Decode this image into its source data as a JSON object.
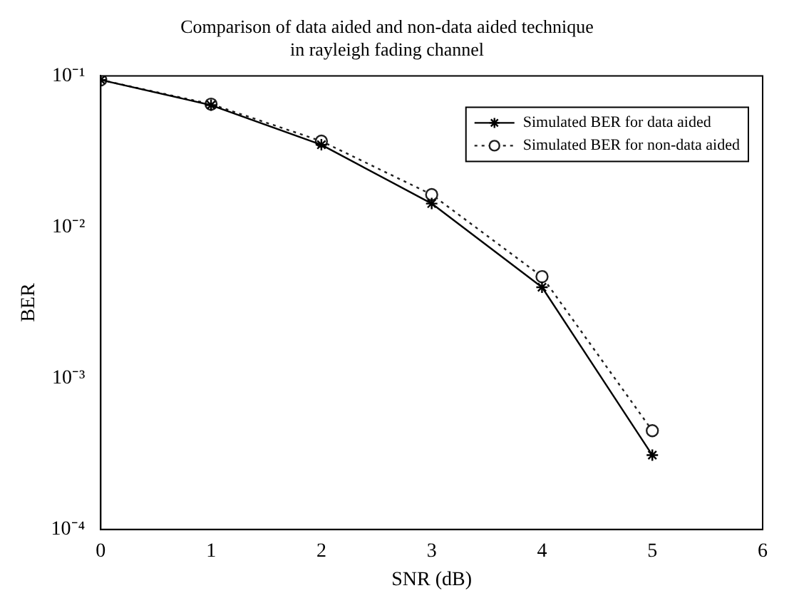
{
  "chart_data": {
    "type": "line",
    "title": "Comparison of data aided and non-data aided technique\nin rayleigh fading channel",
    "xlabel": "SNR (dB)",
    "ylabel": "BER",
    "log": "y",
    "x": [
      0,
      1,
      2,
      3,
      4,
      5
    ],
    "series": [
      {
        "name": "Simulated BER for data aided",
        "color": "#000000",
        "marker": "cross",
        "line_style": "solid",
        "values": [
          0.094,
          0.064,
          0.035,
          0.0143,
          0.004,
          0.00031
        ]
      },
      {
        "name": "Simulated BER for non-data aided",
        "color": "#202020",
        "marker": "circle",
        "line_style": "dotted",
        "values": [
          0.094,
          0.065,
          0.037,
          0.0164,
          0.0047,
          0.00045
        ]
      }
    ],
    "xlim": [
      0,
      6
    ],
    "xticks": [
      0,
      1,
      2,
      3,
      4,
      5,
      6
    ],
    "ylim": [
      0.0001,
      0.1
    ],
    "yticks": [
      {
        "value": 0.0001,
        "label": "10⁻⁴"
      },
      {
        "value": 0.001,
        "label": "10⁻³"
      },
      {
        "value": 0.01,
        "label": "10⁻²"
      },
      {
        "value": 0.1,
        "label": "10⁻¹"
      }
    ],
    "grid": false,
    "legend": "top right"
  }
}
